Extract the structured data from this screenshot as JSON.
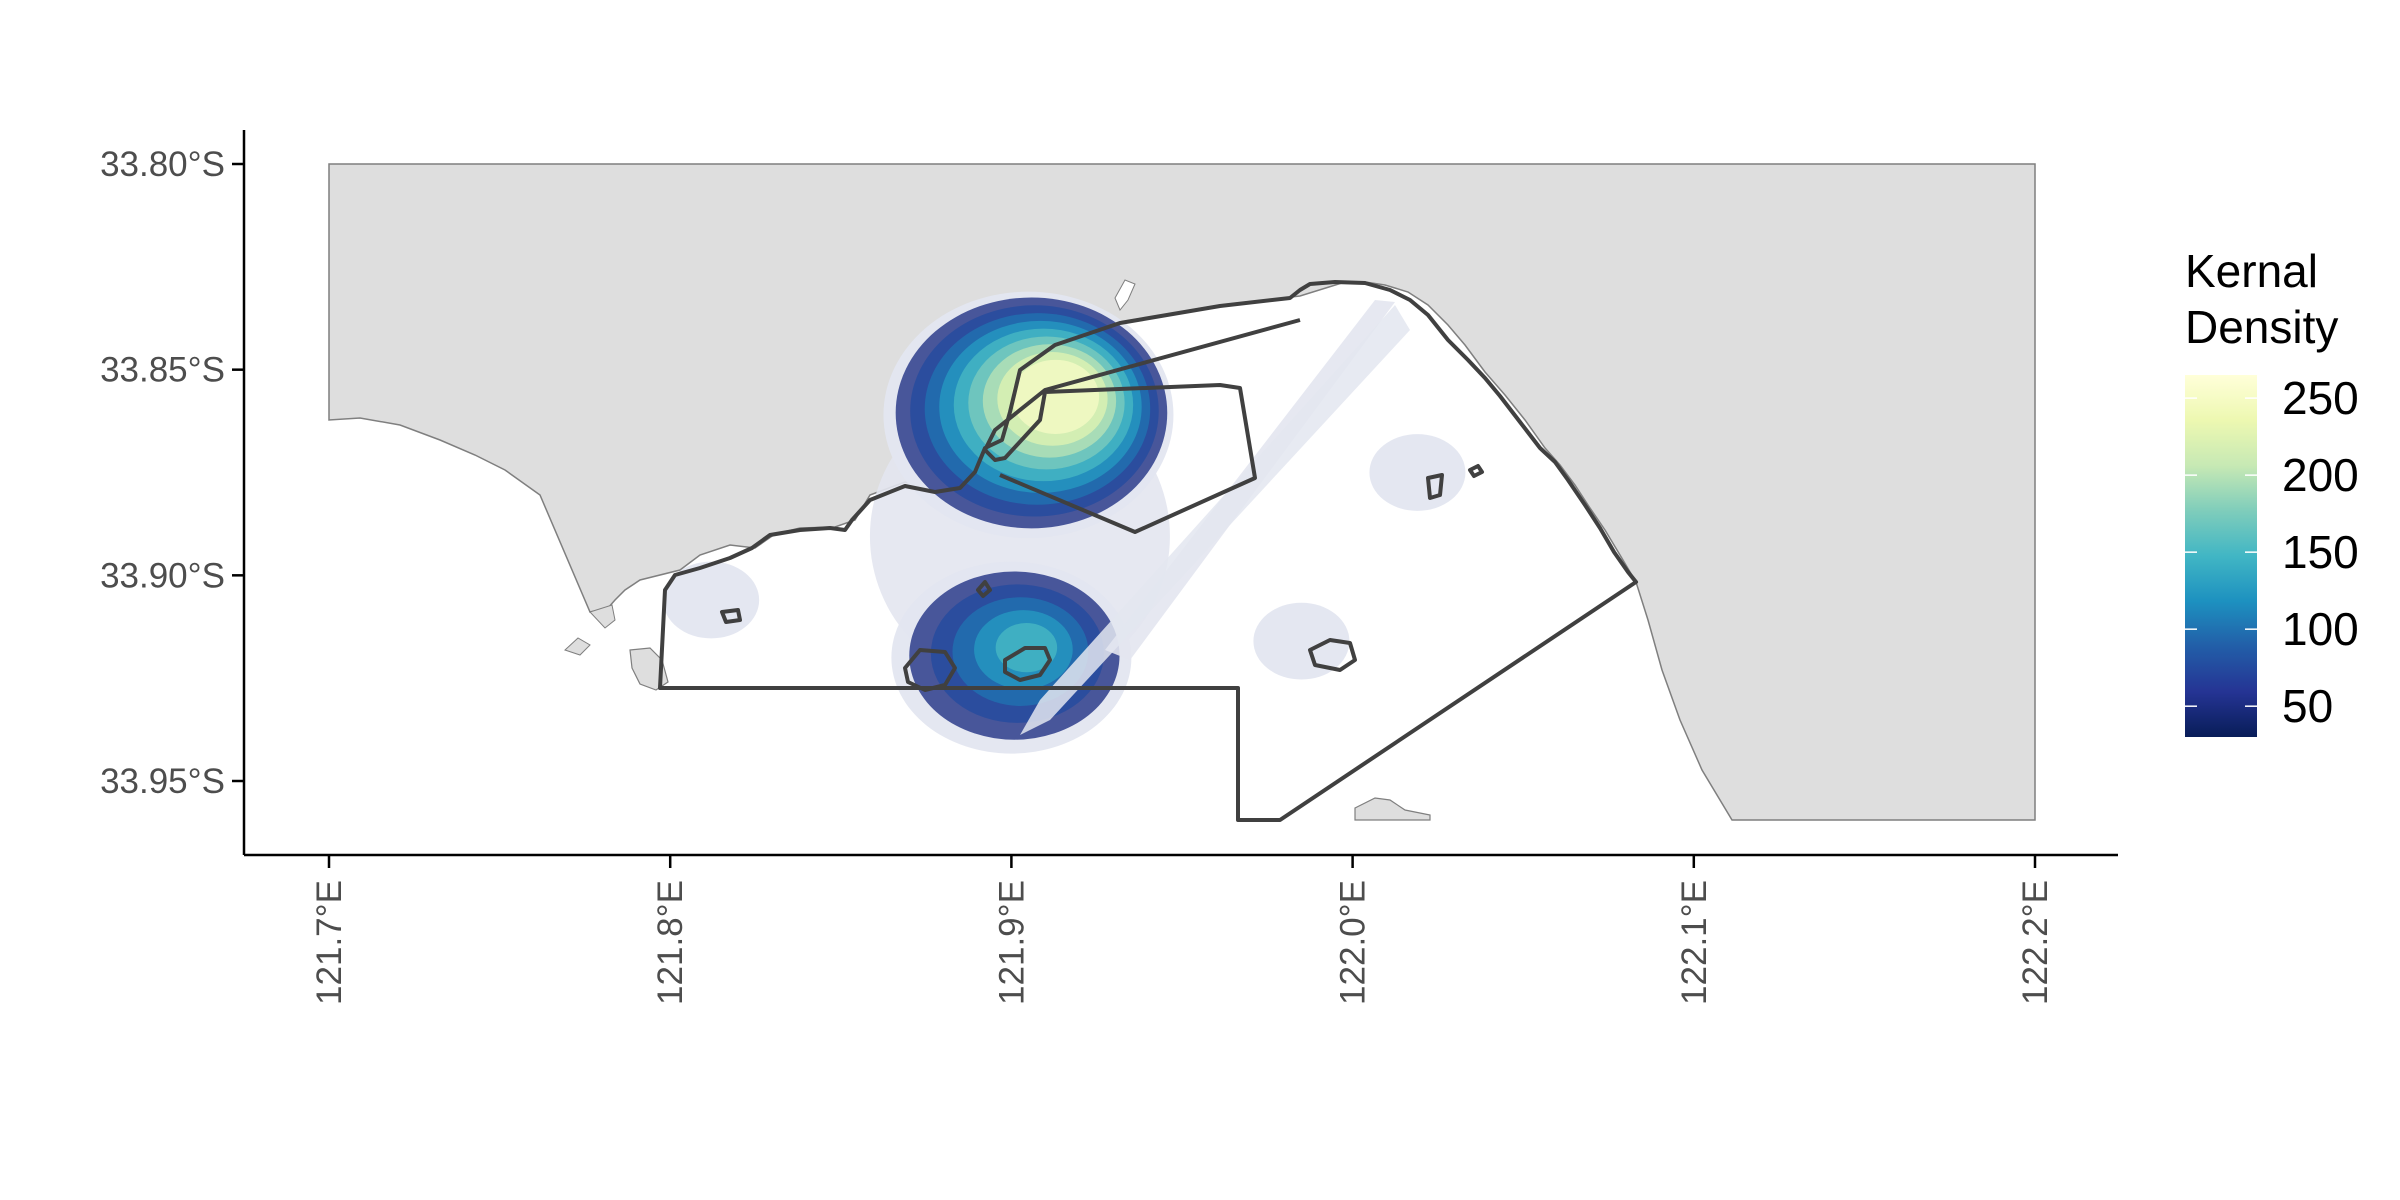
{
  "chart_data": {
    "type": "heatmap",
    "subtype": "kernel-density map",
    "x_axis": {
      "min": 121.7,
      "max": 122.2,
      "ticks": [
        {
          "value": 121.7,
          "label": "121.7°E"
        },
        {
          "value": 121.8,
          "label": "121.8°E"
        },
        {
          "value": 121.9,
          "label": "121.9°E"
        },
        {
          "value": 122.0,
          "label": "122.0°E"
        },
        {
          "value": 122.1,
          "label": "122.1°E"
        },
        {
          "value": 122.2,
          "label": "122.2°E"
        }
      ]
    },
    "y_axis": {
      "min": -33.96,
      "max": -33.8,
      "ticks": [
        {
          "value": -33.8,
          "label": "33.80°S"
        },
        {
          "value": -33.85,
          "label": "33.85°S"
        },
        {
          "value": -33.9,
          "label": "33.90°S"
        },
        {
          "value": -33.95,
          "label": "33.95°S"
        }
      ]
    },
    "grid": false,
    "legend": {
      "position": "right",
      "title_lines": [
        "Kernal",
        "Density"
      ],
      "range": [
        30,
        265
      ],
      "breaks": [
        {
          "value": 250,
          "label": "250"
        },
        {
          "value": 200,
          "label": "200"
        },
        {
          "value": 150,
          "label": "150"
        },
        {
          "value": 100,
          "label": "100"
        },
        {
          "value": 50,
          "label": "50"
        }
      ],
      "colors": [
        "#081d58",
        "#253494",
        "#225ea8",
        "#1d91c0",
        "#41b6c4",
        "#7fcdbb",
        "#c7e9b4",
        "#edf8b1",
        "#ffffd9"
      ]
    },
    "density_hotspots": [
      {
        "lon": 121.905,
        "lat": -33.861,
        "peak": 265
      },
      {
        "lon": 121.9,
        "lat": -33.92,
        "peak": 150
      },
      {
        "lon": 121.985,
        "lat": -33.916,
        "peak": 35
      },
      {
        "lon": 122.019,
        "lat": -33.875,
        "peak": 35
      },
      {
        "lon": 121.812,
        "lat": -33.906,
        "peak": 35
      }
    ],
    "colors": {
      "land": "#dedede",
      "land_outline": "#7f7f7f",
      "boundary": "#404040",
      "low_density": "#e3e6f0",
      "axis": "#000000"
    }
  }
}
